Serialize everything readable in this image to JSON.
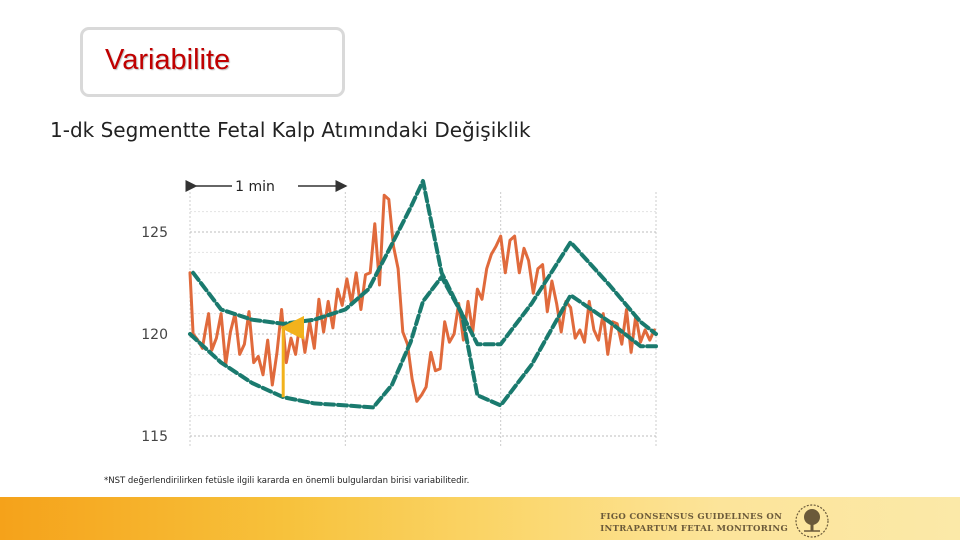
{
  "slide": {
    "title": "Variabilite",
    "subtitle": "1-dk Segmentte Fetal Kalp Atımındaki Değişiklik",
    "footnote": "*NST değerlendirilirken fetüsle ilgili kararda en önemli bulgulardan birisi variabilitedir.",
    "logo_line1": "FIGO CONSENSUS GUIDELINES ON",
    "logo_line2": "INTRAPARTUM FETAL MONITORING",
    "logo_icon": "tree-icon"
  },
  "chart_data": {
    "type": "line",
    "time_annotation": "1 min",
    "y_ticks": [
      115,
      120,
      125
    ],
    "ylim": [
      115,
      127
    ],
    "x_unit": "min",
    "xlim": [
      0,
      3
    ],
    "x_gridlines": [
      0,
      1,
      2,
      3
    ],
    "grid": true,
    "colors": {
      "trace": "#e06a3c",
      "envelope": "#1a7a6e",
      "amplitude_arrow": "#f2b21c"
    },
    "series": [
      {
        "role": "heart-rate-trace",
        "x": [
          0,
          0.02,
          0.05,
          0.08,
          0.1,
          0.12,
          0.14,
          0.17,
          0.2,
          0.23,
          0.26,
          0.29,
          0.32,
          0.35,
          0.38,
          0.41,
          0.44,
          0.47,
          0.5,
          0.53,
          0.56,
          0.59,
          0.62,
          0.65,
          0.68,
          0.71,
          0.74,
          0.77,
          0.8,
          0.83,
          0.86,
          0.89,
          0.92,
          0.95,
          0.98,
          1.01,
          1.04,
          1.07,
          1.1,
          1.13,
          1.16,
          1.19,
          1.22,
          1.25,
          1.28,
          1.31,
          1.34,
          1.37,
          1.4,
          1.43,
          1.46,
          1.49,
          1.52,
          1.55,
          1.58,
          1.61,
          1.64,
          1.67,
          1.7,
          1.73,
          1.76,
          1.79,
          1.82,
          1.85,
          1.88,
          1.91,
          1.94,
          1.97,
          2.0,
          2.03,
          2.06,
          2.09,
          2.12,
          2.15,
          2.18,
          2.21,
          2.24,
          2.27,
          2.3,
          2.33,
          2.36,
          2.39,
          2.42,
          2.45,
          2.48,
          2.51,
          2.54,
          2.57,
          2.6,
          2.63,
          2.66,
          2.69,
          2.72,
          2.75,
          2.78,
          2.81,
          2.84,
          2.87,
          2.9,
          2.93,
          2.96,
          2.99
        ],
        "y": [
          123.0,
          120.0,
          119.7,
          119.3,
          120.2,
          121.0,
          119.2,
          119.8,
          121.0,
          118.5,
          120.1,
          121.0,
          119.0,
          119.5,
          121.1,
          118.6,
          118.9,
          118.0,
          119.7,
          117.5,
          119.1,
          121.2,
          118.6,
          119.8,
          119.0,
          120.7,
          119.1,
          120.6,
          119.3,
          121.7,
          120.1,
          121.6,
          120.3,
          122.2,
          121.4,
          122.7,
          121.5,
          123.0,
          121.2,
          122.9,
          123.0,
          125.4,
          122.4,
          126.8,
          126.6,
          124.3,
          123.2,
          120.1,
          119.5,
          117.8,
          116.7,
          117.0,
          117.4,
          119.1,
          118.2,
          118.3,
          120.6,
          119.6,
          120.0,
          121.5,
          119.7,
          121.6,
          120.1,
          122.2,
          121.7,
          123.2,
          123.9,
          124.3,
          124.8,
          123.0,
          124.6,
          124.8,
          123.0,
          124.2,
          123.6,
          122.0,
          123.2,
          123.4,
          121.1,
          122.6,
          121.5,
          120.1,
          121.6,
          121.3,
          119.8,
          120.2,
          119.6,
          121.6,
          120.2,
          119.7,
          121.0,
          119.0,
          120.6,
          120.5,
          119.5,
          121.2,
          119.1,
          120.9,
          119.6,
          120.2,
          119.7,
          120.2
        ]
      },
      {
        "role": "upper-envelope",
        "x": [
          0.02,
          0.2,
          0.4,
          0.6,
          0.8,
          1.0,
          1.15,
          1.3,
          1.42,
          1.5,
          1.62,
          1.75,
          1.85,
          2.0,
          2.2,
          2.45,
          2.7,
          2.9,
          3.0
        ],
        "y": [
          123.0,
          121.2,
          120.7,
          120.5,
          120.7,
          121.2,
          122.2,
          124.4,
          126.2,
          127.5,
          123.0,
          121.0,
          119.5,
          119.5,
          121.5,
          124.5,
          122.4,
          120.6,
          120.0
        ]
      },
      {
        "role": "lower-envelope",
        "x": [
          0.0,
          0.2,
          0.4,
          0.6,
          0.8,
          1.0,
          1.18,
          1.3,
          1.42,
          1.5,
          1.62,
          1.75,
          1.85,
          2.0,
          2.2,
          2.45,
          2.7,
          2.9,
          3.0
        ],
        "y": [
          120.0,
          118.6,
          117.6,
          116.9,
          116.6,
          116.5,
          116.4,
          117.5,
          119.6,
          121.6,
          122.8,
          121.0,
          117.0,
          116.5,
          118.5,
          121.9,
          120.6,
          119.4,
          119.4
        ]
      }
    ],
    "amplitude_marker": {
      "x": 0.6,
      "y_from": 116.9,
      "y_to": 120.5
    }
  }
}
